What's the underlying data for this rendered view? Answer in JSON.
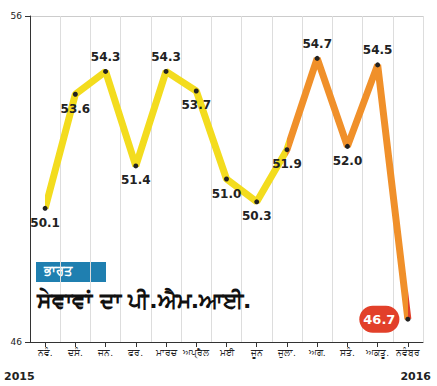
{
  "chart_data": {
    "type": "line",
    "title": "ਸੇਵਾਵਾਂ ਦਾ ਪੀ.ਐਮ.ਆਈ.",
    "subtitle": "ਭਾਰਤ",
    "categories": [
      "ਨਵੰ.",
      "ਦਸੰ.",
      "ਜਨ.",
      "ਫਰ.",
      "ਮਾਰਚ",
      "ਅਪ੍ਰੈਲ",
      "ਮਈ",
      "ਜੂਨ",
      "ਜੁਲਾ.",
      "ਅਗ.",
      "ਸਤੰ.",
      "ਅਕਤੂ.",
      "ਨਵੰਬਰ"
    ],
    "values": [
      50.1,
      53.6,
      54.3,
      51.4,
      54.3,
      53.7,
      51.0,
      50.3,
      51.9,
      54.7,
      52.0,
      54.5,
      46.7
    ],
    "value_labels": [
      "50.1",
      "53.6",
      "54.3",
      "51.4",
      "54.3",
      "53.7",
      "51.0",
      "50.3",
      "51.9",
      "54.7",
      "52.0",
      "54.5",
      "46.7"
    ],
    "colors": [
      "#f3dc1e",
      "#f3dc1e",
      "#f3dc1e",
      "#f3dc1e",
      "#f3dc1e",
      "#f3dc1e",
      "#f3dc1e",
      "#f3dc1e",
      "#f0902a",
      "#f0902a",
      "#f0902a",
      "#f0902a",
      "#e2402a"
    ],
    "annotations": [
      "2015",
      "2016"
    ],
    "ylim": [
      46,
      56
    ],
    "yticks": [
      46,
      56
    ],
    "grid": true,
    "data_labels": true,
    "marker": "circle",
    "line_style": "solid"
  }
}
